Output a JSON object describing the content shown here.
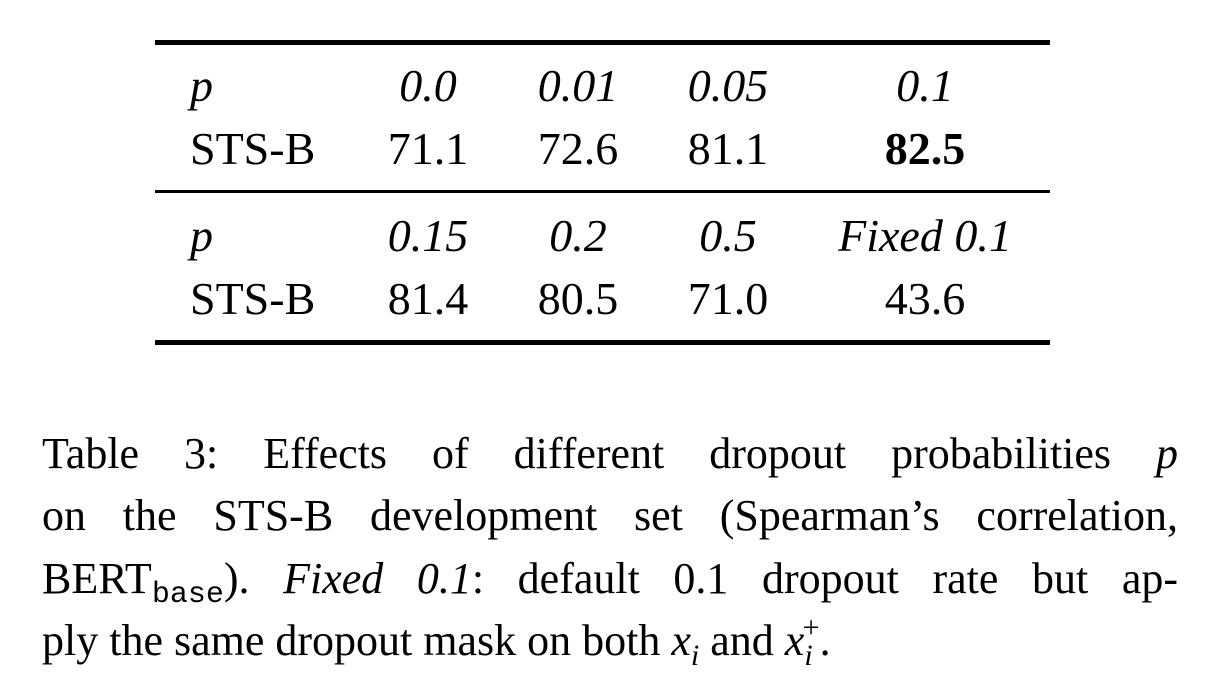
{
  "table": {
    "blocks": [
      {
        "header": [
          "p",
          "0.0",
          "0.01",
          "0.05",
          "0.1"
        ],
        "row": [
          "STS-B",
          "71.1",
          "72.6",
          "81.1",
          "82.5"
        ]
      },
      {
        "header": [
          "p",
          "0.15",
          "0.2",
          "0.5",
          "Fixed 0.1"
        ],
        "row": [
          "STS-B",
          "81.4",
          "80.5",
          "71.0",
          "43.6"
        ]
      }
    ]
  },
  "caption": {
    "lines": [
      [
        "Table 3:",
        " Effects of different dropout probabilities ",
        "p"
      ],
      [
        "on the STS-B development set (Spearman’s correlation,"
      ],
      [
        "BERT",
        "base",
        "). ",
        "Fixed 0.1",
        ": default 0.1 dropout rate but ap-"
      ],
      [
        "ply the same dropout mask on both ",
        "x",
        "i",
        " and ",
        "x",
        "i",
        "+",
        "."
      ]
    ]
  }
}
